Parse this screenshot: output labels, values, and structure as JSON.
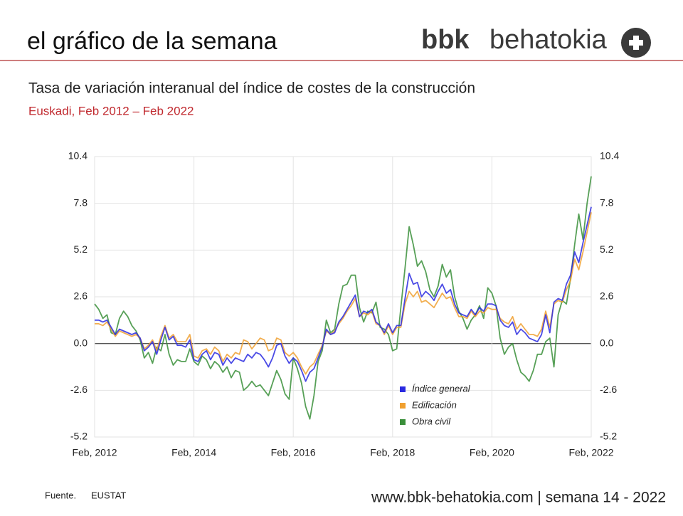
{
  "header": {
    "title": "el gráfico de la semana",
    "logo_bold": "bbk",
    "logo_light": "behatokia"
  },
  "chart_data": {
    "type": "line",
    "title": "Tasa de variación interanual del índice de costes de la construcción",
    "subtitle": "Euskadi, Feb 2012 – Feb 2022",
    "x": [
      "2012-02",
      "2012-03",
      "2012-04",
      "2012-05",
      "2012-06",
      "2012-07",
      "2012-08",
      "2012-09",
      "2012-10",
      "2012-11",
      "2012-12",
      "2013-01",
      "2013-02",
      "2013-03",
      "2013-04",
      "2013-05",
      "2013-06",
      "2013-07",
      "2013-08",
      "2013-09",
      "2013-10",
      "2013-11",
      "2013-12",
      "2014-01",
      "2014-02",
      "2014-03",
      "2014-04",
      "2014-05",
      "2014-06",
      "2014-07",
      "2014-08",
      "2014-09",
      "2014-10",
      "2014-11",
      "2014-12",
      "2015-01",
      "2015-02",
      "2015-03",
      "2015-04",
      "2015-05",
      "2015-06",
      "2015-07",
      "2015-08",
      "2015-09",
      "2015-10",
      "2015-11",
      "2015-12",
      "2016-01",
      "2016-02",
      "2016-03",
      "2016-04",
      "2016-05",
      "2016-06",
      "2016-07",
      "2016-08",
      "2016-09",
      "2016-10",
      "2016-11",
      "2016-12",
      "2017-01",
      "2017-02",
      "2017-03",
      "2017-04",
      "2017-05",
      "2017-06",
      "2017-07",
      "2017-08",
      "2017-09",
      "2017-10",
      "2017-11",
      "2017-12",
      "2018-01",
      "2018-02",
      "2018-03",
      "2018-04",
      "2018-05",
      "2018-06",
      "2018-07",
      "2018-08",
      "2018-09",
      "2018-10",
      "2018-11",
      "2018-12",
      "2019-01",
      "2019-02",
      "2019-03",
      "2019-04",
      "2019-05",
      "2019-06",
      "2019-07",
      "2019-08",
      "2019-09",
      "2019-10",
      "2019-11",
      "2019-12",
      "2020-01",
      "2020-02",
      "2020-03",
      "2020-04",
      "2020-05",
      "2020-06",
      "2020-07",
      "2020-08",
      "2020-09",
      "2020-10",
      "2020-11",
      "2020-12",
      "2021-01",
      "2021-02",
      "2021-03",
      "2021-04",
      "2021-05",
      "2021-06",
      "2021-07",
      "2021-08",
      "2021-09",
      "2021-10",
      "2021-11",
      "2021-12",
      "2022-01",
      "2022-02"
    ],
    "series": [
      {
        "name": "Índice general",
        "color": "#2a2ae0",
        "values": [
          1.3,
          1.3,
          1.2,
          1.3,
          0.9,
          0.5,
          0.8,
          0.7,
          0.6,
          0.5,
          0.6,
          0.3,
          -0.4,
          -0.2,
          0.1,
          -0.6,
          0.2,
          0.9,
          0.2,
          0.4,
          -0.1,
          -0.1,
          -0.2,
          0.2,
          -0.9,
          -1.0,
          -0.6,
          -0.4,
          -0.9,
          -0.5,
          -0.6,
          -1.2,
          -0.8,
          -1.1,
          -0.8,
          -0.9,
          -1.0,
          -0.6,
          -0.8,
          -0.5,
          -0.6,
          -0.9,
          -1.3,
          -0.8,
          -0.1,
          0.0,
          -0.7,
          -1.1,
          -0.8,
          -1.0,
          -1.5,
          -2.1,
          -1.6,
          -1.4,
          -0.8,
          -0.2,
          0.8,
          0.5,
          0.6,
          1.2,
          1.5,
          1.9,
          2.3,
          2.7,
          1.5,
          1.8,
          1.7,
          1.9,
          1.2,
          1.0,
          0.6,
          1.1,
          0.6,
          1.0,
          1.0,
          2.5,
          3.9,
          3.3,
          3.4,
          2.6,
          2.9,
          2.7,
          2.4,
          2.9,
          3.3,
          2.8,
          3.0,
          2.2,
          1.7,
          1.6,
          1.5,
          1.9,
          1.6,
          2.0,
          1.8,
          2.2,
          2.2,
          2.1,
          1.3,
          1.0,
          0.9,
          1.2,
          0.5,
          0.8,
          0.6,
          0.3,
          0.2,
          0.1,
          0.5,
          1.6,
          0.6,
          2.3,
          2.5,
          2.4,
          3.3,
          3.8,
          5.1,
          4.5,
          5.6,
          6.6,
          7.6
        ]
      },
      {
        "name": "Edificación",
        "color": "#f0a030",
        "values": [
          1.1,
          1.1,
          1.0,
          1.2,
          0.8,
          0.4,
          0.7,
          0.6,
          0.5,
          0.4,
          0.5,
          0.3,
          -0.3,
          -0.1,
          0.2,
          -0.4,
          0.4,
          1.0,
          0.3,
          0.5,
          0.1,
          0.1,
          0.1,
          0.5,
          -0.7,
          -0.8,
          -0.4,
          -0.3,
          -0.6,
          -0.2,
          -0.4,
          -1.0,
          -0.6,
          -0.8,
          -0.5,
          -0.6,
          0.2,
          0.1,
          -0.3,
          0.0,
          0.3,
          0.2,
          -0.4,
          -0.3,
          0.3,
          0.2,
          -0.5,
          -0.7,
          -0.5,
          -0.8,
          -1.3,
          -1.7,
          -1.3,
          -1.1,
          -0.6,
          -0.1,
          0.7,
          0.5,
          0.7,
          1.1,
          1.4,
          1.8,
          2.1,
          2.5,
          1.5,
          1.7,
          1.6,
          1.8,
          1.1,
          1.0,
          0.5,
          1.0,
          0.5,
          0.9,
          0.9,
          2.2,
          2.9,
          2.6,
          2.9,
          2.3,
          2.4,
          2.2,
          2.0,
          2.4,
          2.8,
          2.5,
          2.6,
          2.0,
          1.5,
          1.5,
          1.4,
          1.8,
          1.5,
          1.8,
          1.7,
          2.0,
          1.9,
          1.9,
          1.4,
          1.2,
          1.1,
          1.5,
          0.8,
          1.1,
          0.8,
          0.5,
          0.5,
          0.4,
          0.8,
          1.8,
          0.9,
          2.2,
          2.4,
          2.3,
          3.0,
          3.5,
          4.7,
          4.1,
          5.1,
          6.2,
          7.3
        ]
      },
      {
        "name": "Obra civil",
        "color": "#3a8f3a",
        "values": [
          2.2,
          1.9,
          1.4,
          1.6,
          0.6,
          0.5,
          1.4,
          1.8,
          1.5,
          1.0,
          0.7,
          0.2,
          -0.8,
          -0.5,
          -1.1,
          -0.2,
          -0.4,
          0.5,
          -0.6,
          -1.2,
          -0.9,
          -1.0,
          -1.0,
          -0.3,
          -1.0,
          -1.2,
          -0.7,
          -0.9,
          -1.4,
          -1.0,
          -1.2,
          -1.6,
          -1.3,
          -1.9,
          -1.5,
          -1.6,
          -2.6,
          -2.4,
          -2.1,
          -2.4,
          -2.3,
          -2.6,
          -2.9,
          -2.2,
          -1.5,
          -2.0,
          -2.8,
          -3.1,
          -0.8,
          -1.4,
          -2.2,
          -3.5,
          -4.2,
          -2.9,
          -1.0,
          -0.4,
          1.3,
          0.6,
          0.8,
          2.2,
          3.2,
          3.3,
          3.8,
          3.8,
          2.0,
          1.2,
          1.8,
          1.7,
          2.3,
          0.9,
          0.8,
          0.5,
          -0.4,
          -0.3,
          2.0,
          4.2,
          6.5,
          5.5,
          4.3,
          4.6,
          4.0,
          3.0,
          2.6,
          3.2,
          4.4,
          3.7,
          4.1,
          2.6,
          1.8,
          1.4,
          0.8,
          1.3,
          1.6,
          2.1,
          1.4,
          3.1,
          2.8,
          2.1,
          0.3,
          -0.6,
          -0.2,
          0.0,
          -0.9,
          -1.6,
          -1.8,
          -2.1,
          -1.5,
          -0.6,
          -0.6,
          0.1,
          0.3,
          -1.3,
          1.6,
          2.4,
          2.2,
          3.6,
          5.5,
          7.2,
          5.8,
          7.8,
          9.3
        ]
      }
    ],
    "ylim": [
      -5.2,
      10.4
    ],
    "yticks": [
      -5.2,
      -2.6,
      {
        "value": 0,
        "label": "0.0"
      },
      2.6,
      5.2,
      7.8,
      10.4
    ],
    "xticks": [
      {
        "value": "2012-02",
        "label": "Feb, 2012"
      },
      {
        "value": "2014-02",
        "label": "Feb, 2014"
      },
      {
        "value": "2016-02",
        "label": "Feb, 2016"
      },
      {
        "value": "2018-02",
        "label": "Feb, 2018"
      },
      {
        "value": "2020-02",
        "label": "Feb, 2020"
      },
      {
        "value": "2022-02",
        "label": "Feb, 2022"
      }
    ],
    "grid": true,
    "legend": "lower right"
  },
  "footer": {
    "source_label": "Fuente.",
    "source": "EUSTAT",
    "site": "www.bbk-behatokia.com | semana 14 - 2022"
  }
}
